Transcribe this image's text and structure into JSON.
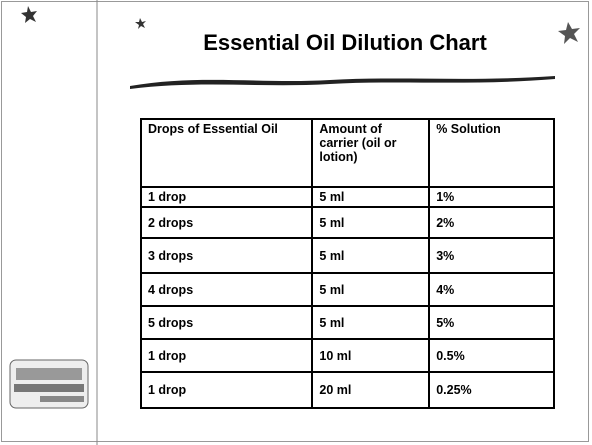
{
  "header": {
    "title": "Essential Oil Dilution Chart"
  },
  "table": {
    "columns": [
      "Drops of Essential Oil",
      "Amount of carrier (oil or lotion)",
      "% Solution"
    ],
    "rows": [
      [
        "1 drop",
        "5 ml",
        "1%"
      ],
      [
        "2 drops",
        "5 ml",
        "2%"
      ],
      [
        "3 drops",
        "5 ml",
        "3%"
      ],
      [
        "4 drops",
        "5 ml",
        "4%"
      ],
      [
        "5 drops",
        "5 ml",
        "5%"
      ],
      [
        "1 drop",
        "10 ml",
        "0.5%"
      ],
      [
        "1 drop",
        "20 ml",
        "0.25%"
      ]
    ]
  }
}
